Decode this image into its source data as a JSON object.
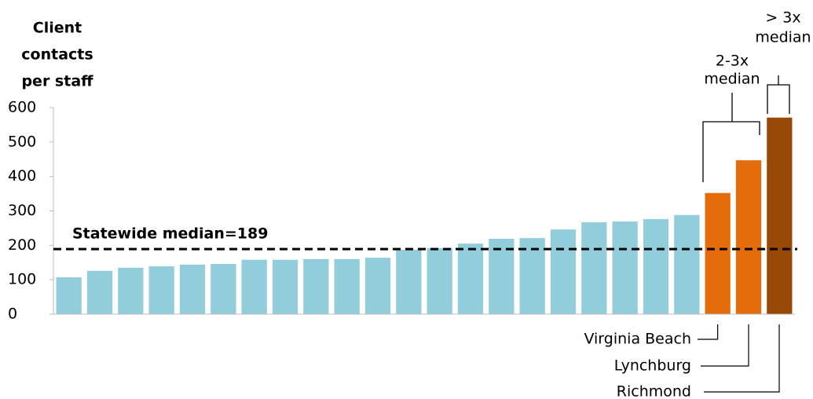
{
  "chart_data": {
    "type": "bar",
    "ylabel": [
      "Client",
      "contacts",
      "per staff"
    ],
    "categories": [
      null,
      null,
      null,
      null,
      null,
      null,
      null,
      null,
      null,
      null,
      null,
      null,
      null,
      null,
      null,
      null,
      null,
      null,
      null,
      null,
      null,
      "Virginia Beach",
      "Lynchburg",
      "Richmond"
    ],
    "values": [
      107,
      126,
      135,
      139,
      144,
      146,
      158,
      158,
      160,
      160,
      164,
      187,
      192,
      205,
      219,
      221,
      246,
      267,
      269,
      276,
      288,
      352,
      447,
      571
    ],
    "colors": [
      "#92cddc",
      "#92cddc",
      "#92cddc",
      "#92cddc",
      "#92cddc",
      "#92cddc",
      "#92cddc",
      "#92cddc",
      "#92cddc",
      "#92cddc",
      "#92cddc",
      "#92cddc",
      "#92cddc",
      "#92cddc",
      "#92cddc",
      "#92cddc",
      "#92cddc",
      "#92cddc",
      "#92cddc",
      "#92cddc",
      "#92cddc",
      "#e46c0a",
      "#e46c0a",
      "#984807"
    ],
    "ylim": [
      0,
      600
    ],
    "yticks": [
      0,
      100,
      200,
      300,
      400,
      500,
      600
    ],
    "median": 189,
    "median_label": "Statewide median=189",
    "brackets": [
      {
        "label": [
          "2-3x",
          "median"
        ]
      },
      {
        "label": [
          "> 3x",
          "median"
        ]
      }
    ]
  }
}
